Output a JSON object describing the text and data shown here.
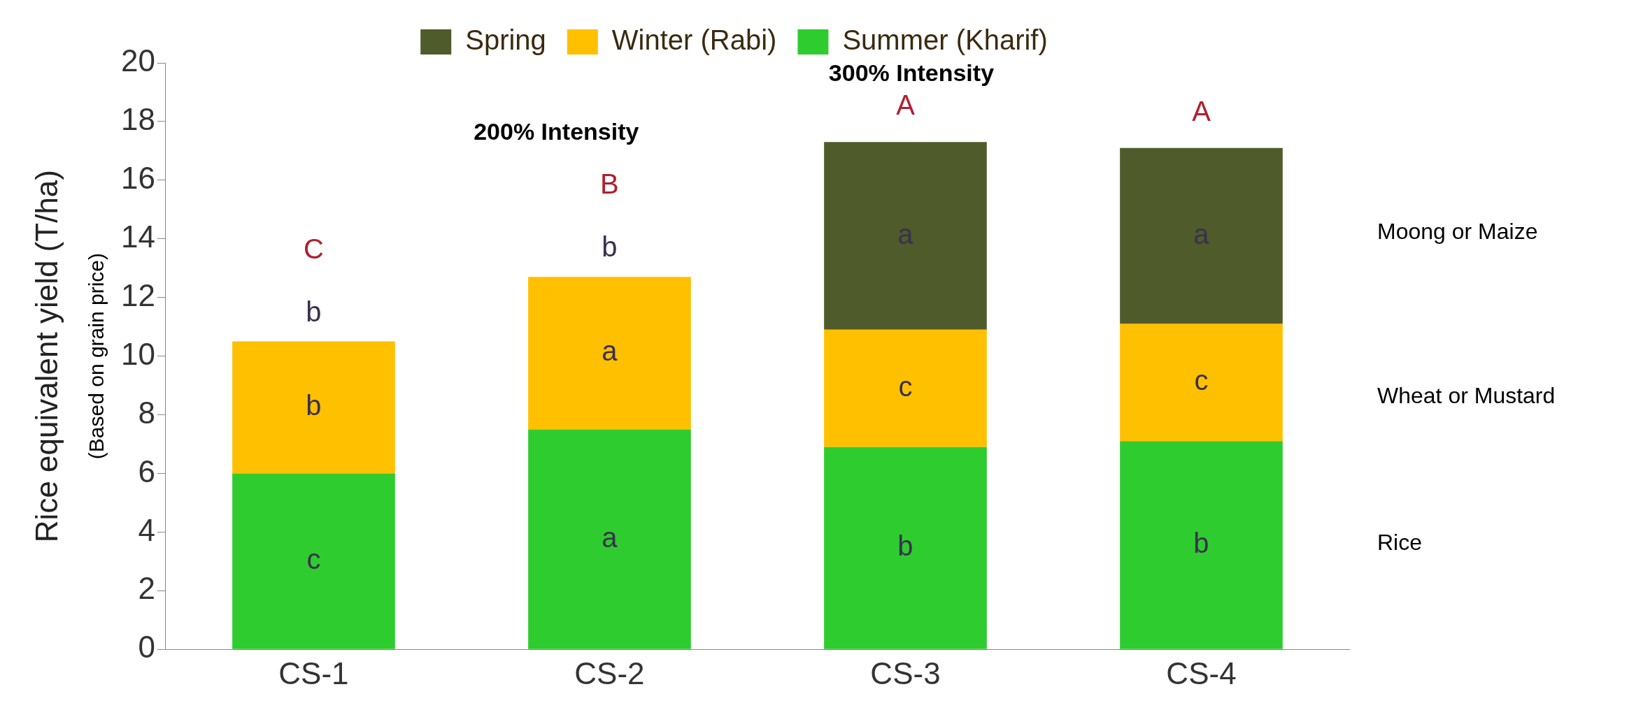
{
  "chart_data": {
    "type": "bar",
    "stacked": true,
    "ylabel": "Rice equivalent yield (T/ha)",
    "categories": [
      "CS-1",
      "CS-2",
      "CS-3",
      "CS-4"
    ],
    "series": [
      {
        "name": "Summer (Kharif)",
        "color": "#2fcc2f",
        "values": [
          6.0,
          7.5,
          6.9,
          7.1
        ],
        "value_labels": [
          "c",
          "a",
          "b",
          "b"
        ]
      },
      {
        "name": "Winter (Rabi)",
        "color": "#ffc000",
        "values": [
          4.5,
          5.2,
          4.0,
          4.0
        ],
        "value_labels": [
          "b",
          "a",
          "c",
          "c"
        ]
      },
      {
        "name": "Spring",
        "color": "#4f5b2a",
        "values": [
          null,
          null,
          6.4,
          6.0
        ],
        "value_labels": [
          null,
          null,
          "a",
          "a"
        ]
      }
    ],
    "totals": [
      "C",
      "B",
      "A",
      "A"
    ],
    "ylim": [
      0,
      20
    ],
    "yticks": [
      0,
      2,
      4,
      6,
      8,
      10,
      12,
      14,
      16,
      18,
      20
    ],
    "grid": false,
    "legend": "top",
    "annotations": [
      "(Based on grain price)",
      "200% Intensity",
      "300% Intensity",
      "Moong or Maize",
      "Wheat or Mustard",
      "Rice",
      "b",
      "b"
    ]
  }
}
